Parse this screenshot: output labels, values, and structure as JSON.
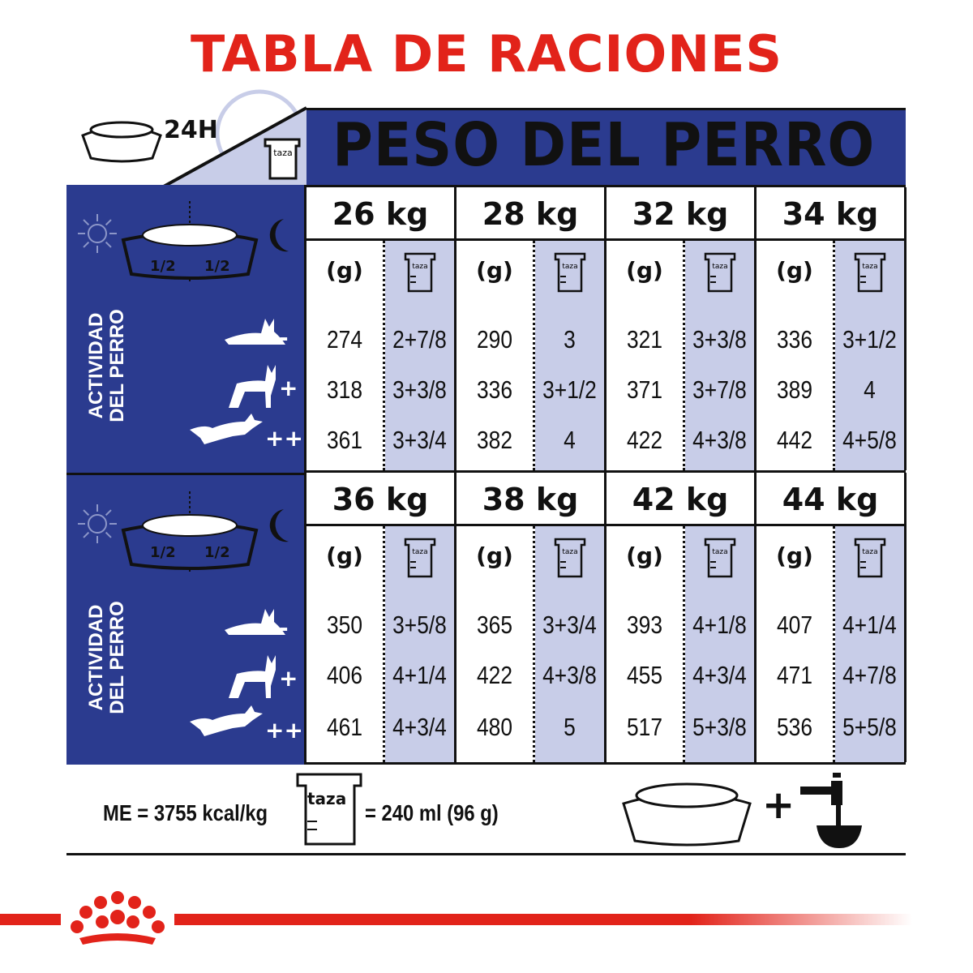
{
  "title": "TABLA DE RACIONES",
  "header": {
    "period": "24H",
    "cup_label": "taza",
    "title": "PESO DEL PERRO"
  },
  "side": {
    "half_left": "1/2",
    "half_right": "1/2",
    "activity_line1": "ACTIVIDAD",
    "activity_line2": "DEL PERRO",
    "levels": [
      "-",
      "+",
      "++"
    ]
  },
  "units": {
    "grams": "(g)",
    "cup": "taza"
  },
  "sections": [
    {
      "weights": [
        {
          "kg": "26 kg",
          "grams": [
            "274",
            "318",
            "361"
          ],
          "cups": [
            "2+7/8",
            "3+3/8",
            "3+3/4"
          ]
        },
        {
          "kg": "28 kg",
          "grams": [
            "290",
            "336",
            "382"
          ],
          "cups": [
            "3",
            "3+1/2",
            "4"
          ]
        },
        {
          "kg": "32 kg",
          "grams": [
            "321",
            "371",
            "422"
          ],
          "cups": [
            "3+3/8",
            "3+7/8",
            "4+3/8"
          ]
        },
        {
          "kg": "34 kg",
          "grams": [
            "336",
            "389",
            "442"
          ],
          "cups": [
            "3+1/2",
            "4",
            "4+5/8"
          ]
        }
      ]
    },
    {
      "weights": [
        {
          "kg": "36 kg",
          "grams": [
            "350",
            "406",
            "461"
          ],
          "cups": [
            "3+5/8",
            "4+1/4",
            "4+3/4"
          ]
        },
        {
          "kg": "38 kg",
          "grams": [
            "365",
            "422",
            "480"
          ],
          "cups": [
            "3+3/4",
            "4+3/8",
            "5"
          ]
        },
        {
          "kg": "42 kg",
          "grams": [
            "393",
            "455",
            "517"
          ],
          "cups": [
            "4+1/8",
            "4+3/4",
            "5+3/8"
          ]
        },
        {
          "kg": "44 kg",
          "grams": [
            "407",
            "471",
            "536"
          ],
          "cups": [
            "4+1/4",
            "4+7/8",
            "5+5/8"
          ]
        }
      ]
    }
  ],
  "footer": {
    "energy": "ME = 3755 kcal/kg",
    "cup_label": "taza",
    "cup_equiv": "= 240 ml (96 g)",
    "plus": "+"
  },
  "colors": {
    "brand_red": "#e2231a",
    "navy": "#2b3b8f",
    "lavender": "#c8cde8"
  }
}
